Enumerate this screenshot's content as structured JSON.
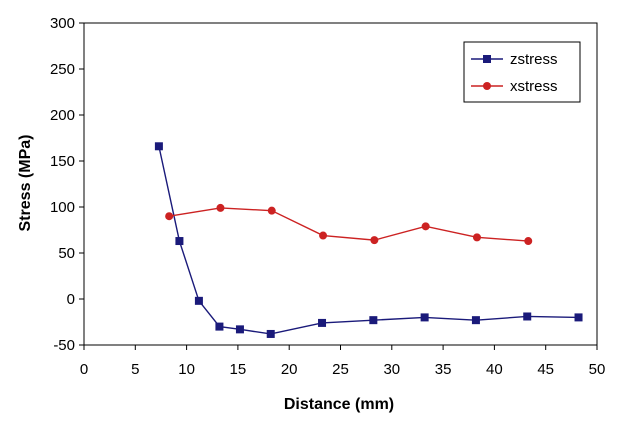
{
  "chart_data": {
    "type": "line",
    "title": "",
    "xlabel": "Distance (mm)",
    "ylabel": "Stress (MPa)",
    "xlim": [
      0,
      50
    ],
    "ylim": [
      -50,
      300
    ],
    "xticks": [
      0,
      5,
      10,
      15,
      20,
      25,
      30,
      35,
      40,
      45,
      50
    ],
    "yticks": [
      -50,
      0,
      50,
      100,
      150,
      200,
      250,
      300
    ],
    "grid": false,
    "legend_position": "top-right",
    "series": [
      {
        "name": "zstress",
        "color": "#1a1a7a",
        "marker": "square",
        "x": [
          7.3,
          9.3,
          11.2,
          13.2,
          15.2,
          18.2,
          23.2,
          28.2,
          33.2,
          38.2,
          43.2,
          48.2
        ],
        "y": [
          166,
          63,
          -2,
          -30,
          -33,
          -38,
          -26,
          -23,
          -20,
          -23,
          -19,
          -20
        ]
      },
      {
        "name": "xstress",
        "color": "#cc2222",
        "marker": "circle",
        "x": [
          8.3,
          13.3,
          18.3,
          23.3,
          28.3,
          33.3,
          38.3,
          43.3
        ],
        "y": [
          90,
          99,
          96,
          69,
          64,
          79,
          67,
          63
        ]
      }
    ]
  }
}
